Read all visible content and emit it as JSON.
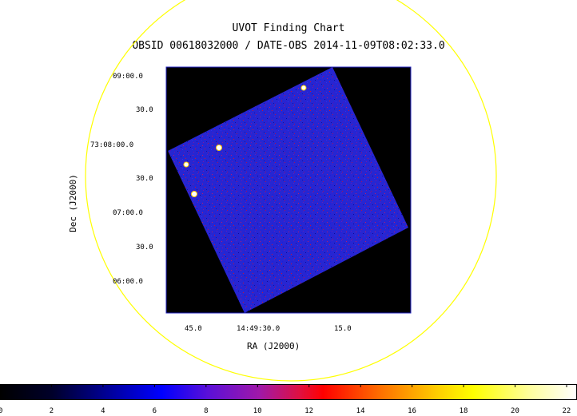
{
  "title": "UVOT Finding Chart",
  "subtitle": "OBSID 00618032000 / DATE-OBS 2014-11-09T08:02:33.0",
  "colors": {
    "background_frame": "#000000",
    "image_field": "#2323d0",
    "circle": "#ffff00",
    "axes_box": "#2020c0",
    "star": "#ffffff"
  },
  "chart_data": {
    "type": "heatmap",
    "title": "UVOT Finding Chart",
    "subtitle": "OBSID 00618032000 / DATE-OBS 2014-11-09T08:02:33.0",
    "xlabel": "RA (J2000)",
    "ylabel": "Dec (J2000)",
    "x_ticks": [
      "45.0",
      "14:49:30.0",
      "15.0"
    ],
    "y_ticks": [
      "09:00.0",
      "30.0",
      "73:08:00.0",
      "30.0",
      "07:00.0",
      "30.0",
      "06:00.0"
    ],
    "colorbar": {
      "min": 0,
      "max": 22,
      "tick_labels": [
        "0",
        "2",
        "4",
        "6",
        "8",
        "10",
        "12",
        "14",
        "16",
        "18",
        "20",
        "22"
      ],
      "colormap": "black-blue-magenta-red-yellow-white"
    },
    "grid": false
  }
}
